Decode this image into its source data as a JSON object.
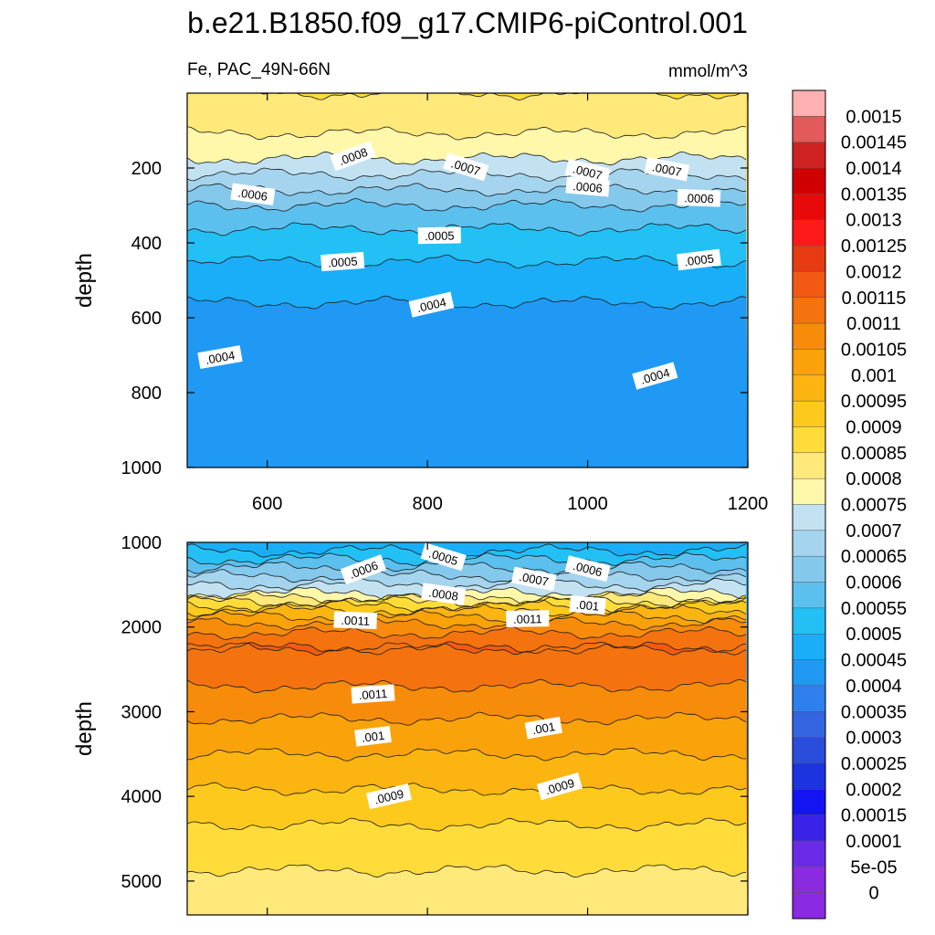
{
  "title": "b.e21.B1850.f09_g17.CMIP6-piControl.001",
  "variable_label": "Fe, PAC_49N-66N",
  "units_label": "mmol/m^3",
  "colors": {
    "level_colors": [
      "#8a2be2",
      "#6a2be8",
      "#3a22e8",
      "#1414f2",
      "#1c33e0",
      "#2a4ddc",
      "#3366e0",
      "#2f80ee",
      "#1f99f4",
      "#1aaef8",
      "#22c0f4",
      "#5cc0ee",
      "#84c8ec",
      "#a4d4ee",
      "#c2e2f2",
      "#fff7aa",
      "#ffe97a",
      "#ffdc3a",
      "#fdc91c",
      "#fbb410",
      "#f9a20a",
      "#f78c0a",
      "#f4730e",
      "#f25a14",
      "#e83b12",
      "#ff1a1a",
      "#e80a0a",
      "#d00000",
      "#cf2222",
      "#e35a5a",
      "#ffb0b0"
    ]
  },
  "chart_data": [
    {
      "type": "heatmap",
      "panel": "upper",
      "title": "Fe, PAC_49N-66N",
      "units": "mmol/m^3",
      "xlabel": "",
      "ylabel": "depth",
      "xlim": [
        500,
        1200
      ],
      "ylim": [
        0,
        1000
      ],
      "y_inverted": true,
      "x_ticks": [
        600,
        800,
        1000,
        1200
      ],
      "y_ticks": [
        200,
        400,
        600,
        800,
        1000
      ],
      "depth_profile": [
        {
          "depth": 0,
          "value": 0.00085
        },
        {
          "depth": 150,
          "value": 0.00078
        },
        {
          "depth": 200,
          "value": 0.00072
        },
        {
          "depth": 300,
          "value": 0.0006
        },
        {
          "depth": 400,
          "value": 0.00052
        },
        {
          "depth": 500,
          "value": 0.00048
        },
        {
          "depth": 600,
          "value": 0.00043
        },
        {
          "depth": 900,
          "value": 0.00042
        },
        {
          "depth": 1000,
          "value": 0.00044
        }
      ],
      "contour_labels": [
        {
          "text": ".0008",
          "x": 707,
          "depth": 168
        },
        {
          "text": ".0007",
          "x": 848,
          "depth": 197
        },
        {
          "text": ".0007",
          "x": 1000,
          "depth": 210
        },
        {
          "text": ".0007",
          "x": 1099,
          "depth": 203
        },
        {
          "text": ".0006",
          "x": 582,
          "depth": 270
        },
        {
          "text": ".0006",
          "x": 1000,
          "depth": 250
        },
        {
          "text": ".0006",
          "x": 1139,
          "depth": 280
        },
        {
          "text": ".0005",
          "x": 815,
          "depth": 380
        },
        {
          "text": ".0005",
          "x": 694,
          "depth": 450
        },
        {
          "text": ".0005",
          "x": 1139,
          "depth": 445
        },
        {
          "text": ".0004",
          "x": 541,
          "depth": 705
        },
        {
          "text": ".0004",
          "x": 805,
          "depth": 565
        },
        {
          "text": ".0004",
          "x": 1084,
          "depth": 755
        }
      ]
    },
    {
      "type": "heatmap",
      "panel": "lower",
      "xlabel": "",
      "ylabel": "depth",
      "xlim": [
        500,
        1200
      ],
      "ylim": [
        1000,
        5400
      ],
      "y_inverted": true,
      "y_ticks": [
        1000,
        2000,
        3000,
        4000,
        5000
      ],
      "depth_profile": [
        {
          "depth": 1000,
          "value": 0.00045
        },
        {
          "depth": 1200,
          "value": 0.00055
        },
        {
          "depth": 1400,
          "value": 0.00065
        },
        {
          "depth": 1600,
          "value": 0.00075
        },
        {
          "depth": 1800,
          "value": 0.00095
        },
        {
          "depth": 2000,
          "value": 0.00108
        },
        {
          "depth": 2250,
          "value": 0.00115
        },
        {
          "depth": 2550,
          "value": 0.00112
        },
        {
          "depth": 3000,
          "value": 0.00106
        },
        {
          "depth": 3500,
          "value": 0.001
        },
        {
          "depth": 4000,
          "value": 0.00094
        },
        {
          "depth": 4500,
          "value": 0.00088
        },
        {
          "depth": 5000,
          "value": 0.00084
        },
        {
          "depth": 5400,
          "value": 0.0008
        }
      ],
      "contour_labels": [
        {
          "text": ".0006",
          "x": 720,
          "depth": 1320
        },
        {
          "text": ".0005",
          "x": 820,
          "depth": 1170
        },
        {
          "text": ".0006",
          "x": 1000,
          "depth": 1310
        },
        {
          "text": ".0007",
          "x": 933,
          "depth": 1430
        },
        {
          "text": ".0008",
          "x": 820,
          "depth": 1610
        },
        {
          "text": ".001",
          "x": 1000,
          "depth": 1740
        },
        {
          "text": ".0011",
          "x": 710,
          "depth": 1920
        },
        {
          "text": ".0011",
          "x": 925,
          "depth": 1900
        },
        {
          "text": ".0011",
          "x": 732,
          "depth": 2790
        },
        {
          "text": ".001",
          "x": 732,
          "depth": 3290
        },
        {
          "text": ".001",
          "x": 945,
          "depth": 3190
        },
        {
          "text": ".0009",
          "x": 752,
          "depth": 4000
        },
        {
          "text": ".0009",
          "x": 965,
          "depth": 3880
        }
      ]
    }
  ],
  "colorbar": {
    "labels": [
      "0.0015",
      "0.00145",
      "0.0014",
      "0.00135",
      "0.0013",
      "0.00125",
      "0.0012",
      "0.00115",
      "0.0011",
      "0.00105",
      "0.001",
      "0.00095",
      "0.0009",
      "0.00085",
      "0.0008",
      "0.00075",
      "0.0007",
      "0.00065",
      "0.0006",
      "0.00055",
      "0.0005",
      "0.00045",
      "0.0004",
      "0.00035",
      "0.0003",
      "0.00025",
      "0.0002",
      "0.00015",
      "0.0001",
      "5e-05",
      "0"
    ]
  }
}
